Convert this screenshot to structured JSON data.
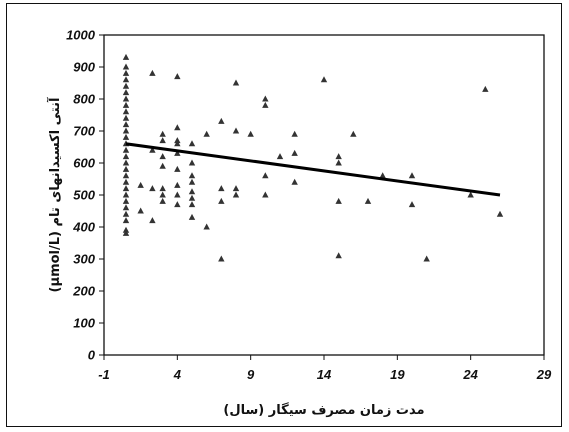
{
  "chart_data": {
    "type": "scatter",
    "title": "",
    "xlabel": "مدت زمان مصرف سیگار (سال)",
    "ylabel": "آنتی اکسیدانهای تام (µmol/L)",
    "xlim": [
      -1,
      29
    ],
    "ylim": [
      0,
      1000
    ],
    "xticks": [
      -1,
      4,
      9,
      14,
      19,
      24,
      29
    ],
    "yticks": [
      0,
      100,
      200,
      300,
      400,
      500,
      600,
      700,
      800,
      900,
      1000
    ],
    "grid": false,
    "marker": "triangle",
    "marker_color": "#333333",
    "points": [
      [
        0.5,
        930
      ],
      [
        0.5,
        900
      ],
      [
        0.5,
        880
      ],
      [
        0.5,
        860
      ],
      [
        0.5,
        840
      ],
      [
        0.5,
        820
      ],
      [
        0.5,
        800
      ],
      [
        0.5,
        780
      ],
      [
        0.5,
        760
      ],
      [
        0.5,
        740
      ],
      [
        0.5,
        720
      ],
      [
        0.5,
        700
      ],
      [
        0.5,
        680
      ],
      [
        0.5,
        660
      ],
      [
        0.5,
        640
      ],
      [
        0.5,
        620
      ],
      [
        0.5,
        600
      ],
      [
        0.5,
        580
      ],
      [
        0.5,
        560
      ],
      [
        0.5,
        540
      ],
      [
        0.5,
        520
      ],
      [
        0.5,
        500
      ],
      [
        0.5,
        480
      ],
      [
        0.5,
        460
      ],
      [
        0.5,
        440
      ],
      [
        0.5,
        420
      ],
      [
        0.5,
        390
      ],
      [
        0.5,
        380
      ],
      [
        1.5,
        530
      ],
      [
        1.5,
        450
      ],
      [
        2.3,
        880
      ],
      [
        2.3,
        640
      ],
      [
        2.3,
        520
      ],
      [
        2.3,
        420
      ],
      [
        3,
        690
      ],
      [
        3,
        670
      ],
      [
        3,
        620
      ],
      [
        3,
        590
      ],
      [
        3,
        520
      ],
      [
        3,
        500
      ],
      [
        3,
        480
      ],
      [
        4,
        870
      ],
      [
        4,
        710
      ],
      [
        4,
        670
      ],
      [
        4,
        660
      ],
      [
        4,
        630
      ],
      [
        4,
        580
      ],
      [
        4,
        530
      ],
      [
        4,
        500
      ],
      [
        4,
        470
      ],
      [
        5,
        660
      ],
      [
        5,
        600
      ],
      [
        5,
        560
      ],
      [
        5,
        540
      ],
      [
        5,
        510
      ],
      [
        5,
        490
      ],
      [
        5,
        470
      ],
      [
        5,
        430
      ],
      [
        6,
        690
      ],
      [
        6,
        400
      ],
      [
        7,
        730
      ],
      [
        7,
        520
      ],
      [
        7,
        480
      ],
      [
        7,
        300
      ],
      [
        8,
        850
      ],
      [
        8,
        700
      ],
      [
        8,
        520
      ],
      [
        8,
        500
      ],
      [
        9,
        690
      ],
      [
        10,
        800
      ],
      [
        10,
        780
      ],
      [
        10,
        560
      ],
      [
        10,
        500
      ],
      [
        11,
        620
      ],
      [
        12,
        690
      ],
      [
        12,
        630
      ],
      [
        12,
        540
      ],
      [
        14,
        860
      ],
      [
        15,
        620
      ],
      [
        15,
        600
      ],
      [
        15,
        480
      ],
      [
        15,
        310
      ],
      [
        16,
        690
      ],
      [
        17,
        480
      ],
      [
        18,
        560
      ],
      [
        20,
        560
      ],
      [
        20,
        470
      ],
      [
        21,
        300
      ],
      [
        24,
        500
      ],
      [
        25,
        830
      ],
      [
        26,
        440
      ]
    ],
    "trendline": {
      "x": [
        0.5,
        26
      ],
      "y": [
        660,
        500
      ]
    }
  }
}
